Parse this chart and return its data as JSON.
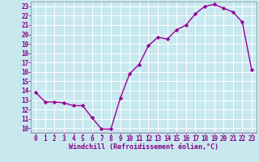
{
  "x": [
    0,
    1,
    2,
    3,
    4,
    5,
    6,
    7,
    8,
    9,
    10,
    11,
    12,
    13,
    14,
    15,
    16,
    17,
    18,
    19,
    20,
    21,
    22,
    23
  ],
  "y": [
    13.8,
    12.8,
    12.8,
    12.7,
    12.4,
    12.4,
    11.1,
    9.9,
    9.9,
    13.2,
    15.8,
    16.8,
    18.8,
    19.7,
    19.5,
    20.5,
    21.0,
    22.2,
    23.0,
    23.2,
    22.8,
    22.4,
    21.3,
    16.2
  ],
  "line_color": "#990099",
  "marker": "D",
  "markersize": 2.2,
  "linewidth": 1.0,
  "xlabel": "Windchill (Refroidissement éolien,°C)",
  "xlabel_fontsize": 6.0,
  "xlim": [
    -0.5,
    23.5
  ],
  "ylim": [
    9.5,
    23.5
  ],
  "yticks": [
    10,
    11,
    12,
    13,
    14,
    15,
    16,
    17,
    18,
    19,
    20,
    21,
    22,
    23
  ],
  "xticks": [
    0,
    1,
    2,
    3,
    4,
    5,
    6,
    7,
    8,
    9,
    10,
    11,
    12,
    13,
    14,
    15,
    16,
    17,
    18,
    19,
    20,
    21,
    22,
    23
  ],
  "bg_color": "#c8e8f0",
  "grid_color": "#ffffff",
  "tick_color": "#880088",
  "tick_fontsize": 5.5,
  "spine_color": "#888888"
}
